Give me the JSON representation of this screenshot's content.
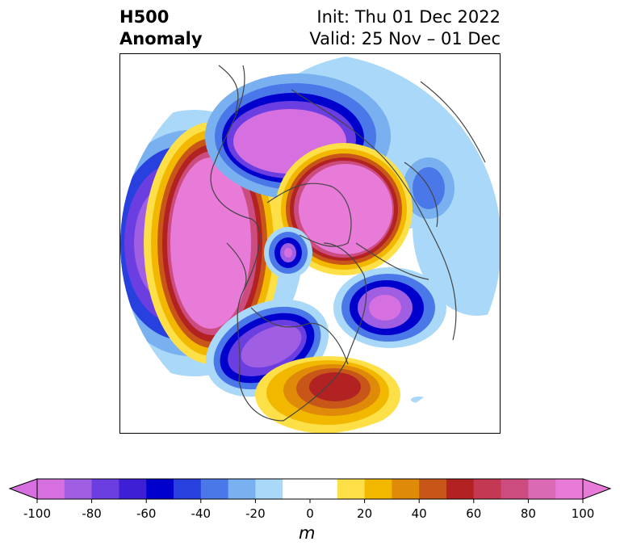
{
  "title": {
    "left_line1": "H500",
    "left_line2": "Anomaly",
    "right_line1": "Init: Thu 01 Dec 2022",
    "right_line2": "Valid: 25 Nov – 01 Dec"
  },
  "colorbar": {
    "ticks": [
      "-100",
      "-80",
      "-60",
      "-40",
      "-20",
      "0",
      "20",
      "40",
      "60",
      "80",
      "100"
    ],
    "unit_label": "m",
    "colors": [
      "#d66fe0",
      "#a05ee3",
      "#6a3ee0",
      "#3e1fd6",
      "#0000cc",
      "#2840de",
      "#4a78e8",
      "#78b0f0",
      "#aad8f8",
      "#ffffff",
      "#ffffff",
      "#fde047",
      "#f2b800",
      "#e08a0a",
      "#c85618",
      "#b22222",
      "#c43854",
      "#cc4c80",
      "#db6ab4",
      "#e87ad8"
    ],
    "under_color": "#d66fe0",
    "over_color": "#e87ad8"
  }
}
